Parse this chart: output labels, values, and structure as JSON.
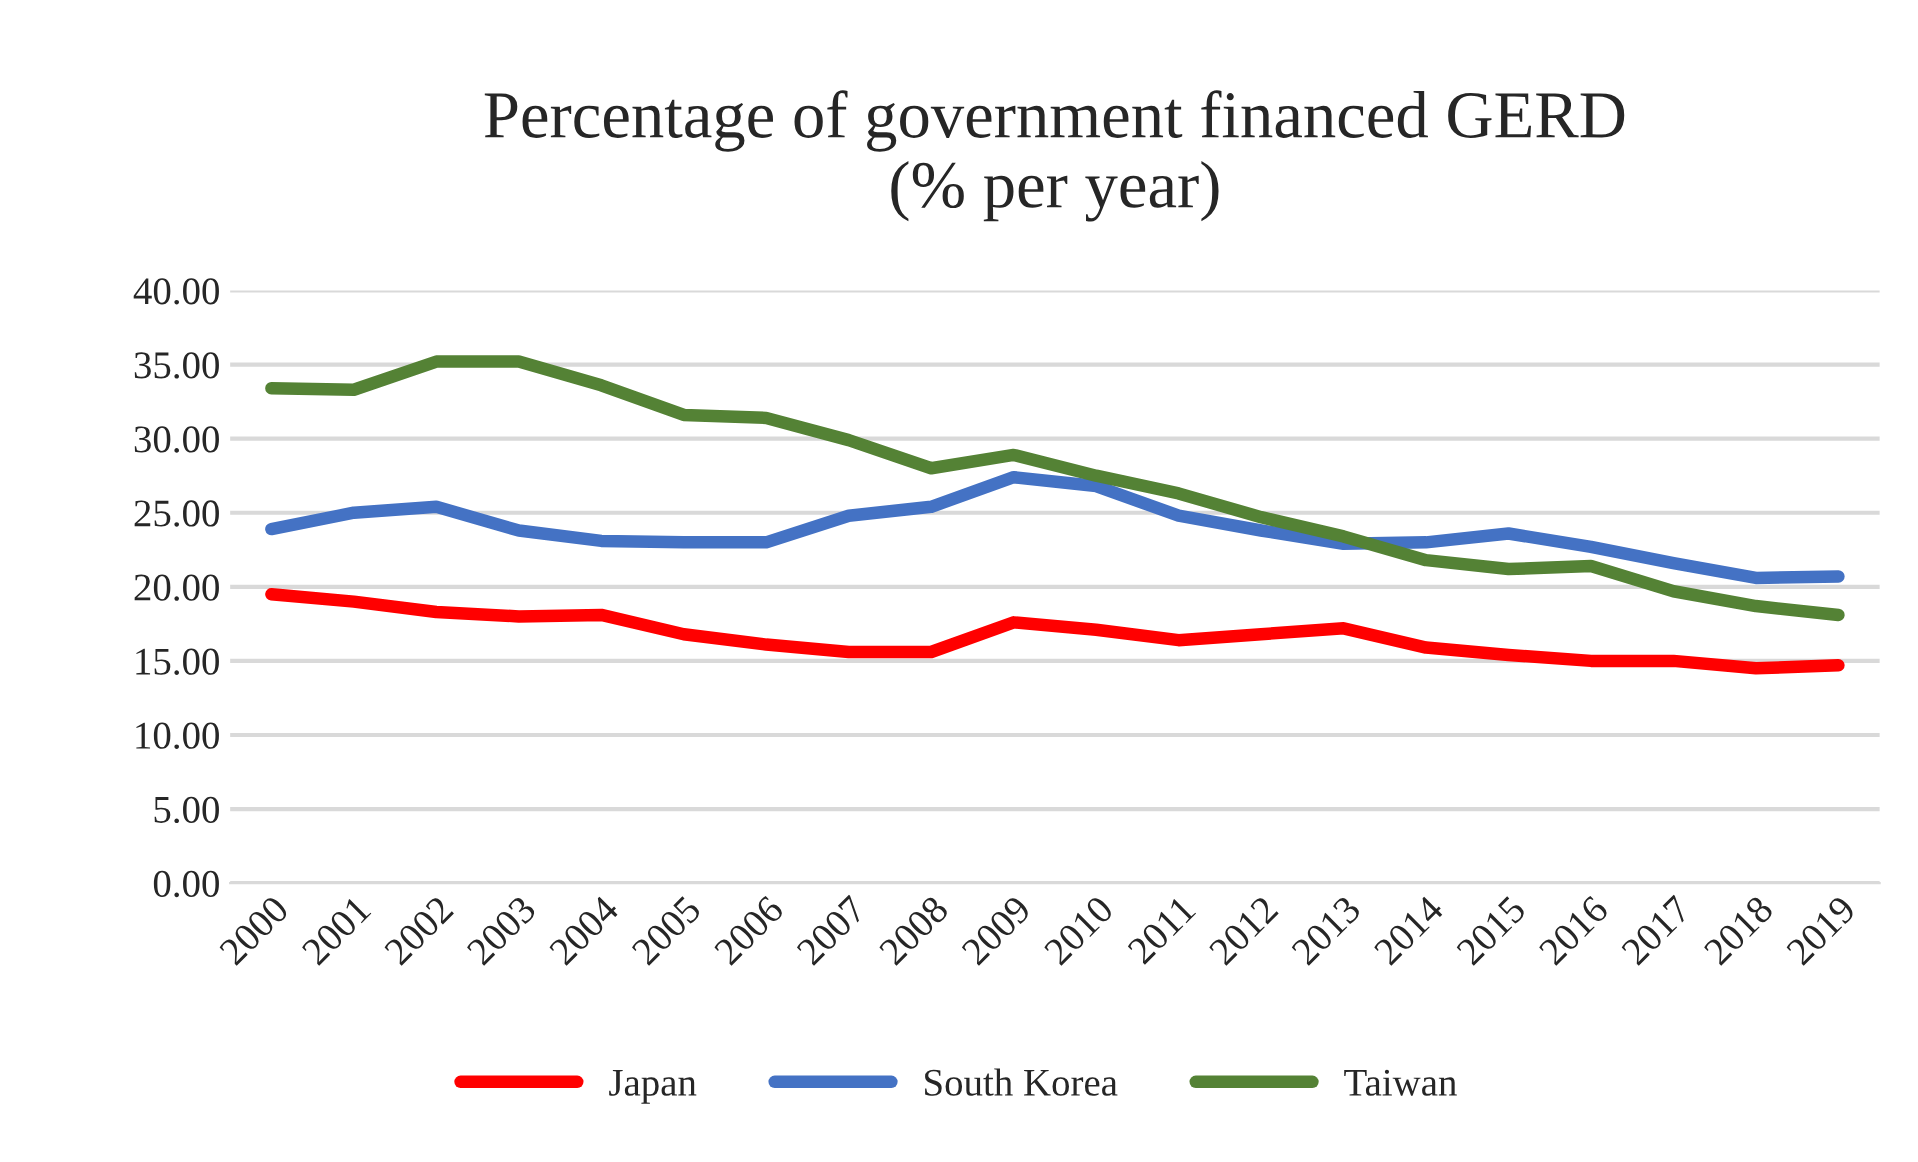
{
  "chart_data": {
    "type": "line",
    "title": "Percentage of government financed GERD\n(% per year)",
    "categories": [
      "2000",
      "2001",
      "2002",
      "2003",
      "2004",
      "2005",
      "2006",
      "2007",
      "2008",
      "2009",
      "2010",
      "2011",
      "2012",
      "2013",
      "2014",
      "2015",
      "2016",
      "2017",
      "2018",
      "2019"
    ],
    "series": [
      {
        "name": "Japan",
        "color": "#ff0000",
        "values": [
          19.5,
          19.0,
          18.3,
          18.0,
          18.1,
          16.8,
          16.1,
          15.6,
          15.6,
          17.6,
          17.1,
          16.4,
          16.8,
          17.2,
          15.9,
          15.4,
          15.0,
          15.0,
          14.5,
          14.7
        ]
      },
      {
        "name": "South Korea",
        "color": "#4472c4",
        "values": [
          23.9,
          25.0,
          25.4,
          23.8,
          23.1,
          23.0,
          23.0,
          24.8,
          25.4,
          27.4,
          26.8,
          24.8,
          23.8,
          22.9,
          23.0,
          23.6,
          22.7,
          21.6,
          20.6,
          20.7
        ]
      },
      {
        "name": "Taiwan",
        "color": "#548235",
        "values": [
          33.4,
          33.3,
          35.2,
          35.2,
          33.6,
          31.6,
          31.4,
          29.9,
          28.0,
          28.9,
          27.5,
          26.3,
          24.7,
          23.4,
          21.8,
          21.2,
          21.4,
          19.7,
          18.7,
          18.1
        ]
      }
    ],
    "ylim": [
      0,
      40
    ],
    "yticks": [
      {
        "value": 0,
        "label": "0.00"
      },
      {
        "value": 5,
        "label": "5.00"
      },
      {
        "value": 10,
        "label": "10.00"
      },
      {
        "value": 15,
        "label": "15.00"
      },
      {
        "value": 20,
        "label": "20.00"
      },
      {
        "value": 25,
        "label": "25.00"
      },
      {
        "value": 30,
        "label": "30.00"
      },
      {
        "value": 35,
        "label": "35.00"
      },
      {
        "value": 40,
        "label": "40.00"
      }
    ],
    "grid": "y",
    "legend": "bottom",
    "marker": "none",
    "line_style": "solid"
  }
}
